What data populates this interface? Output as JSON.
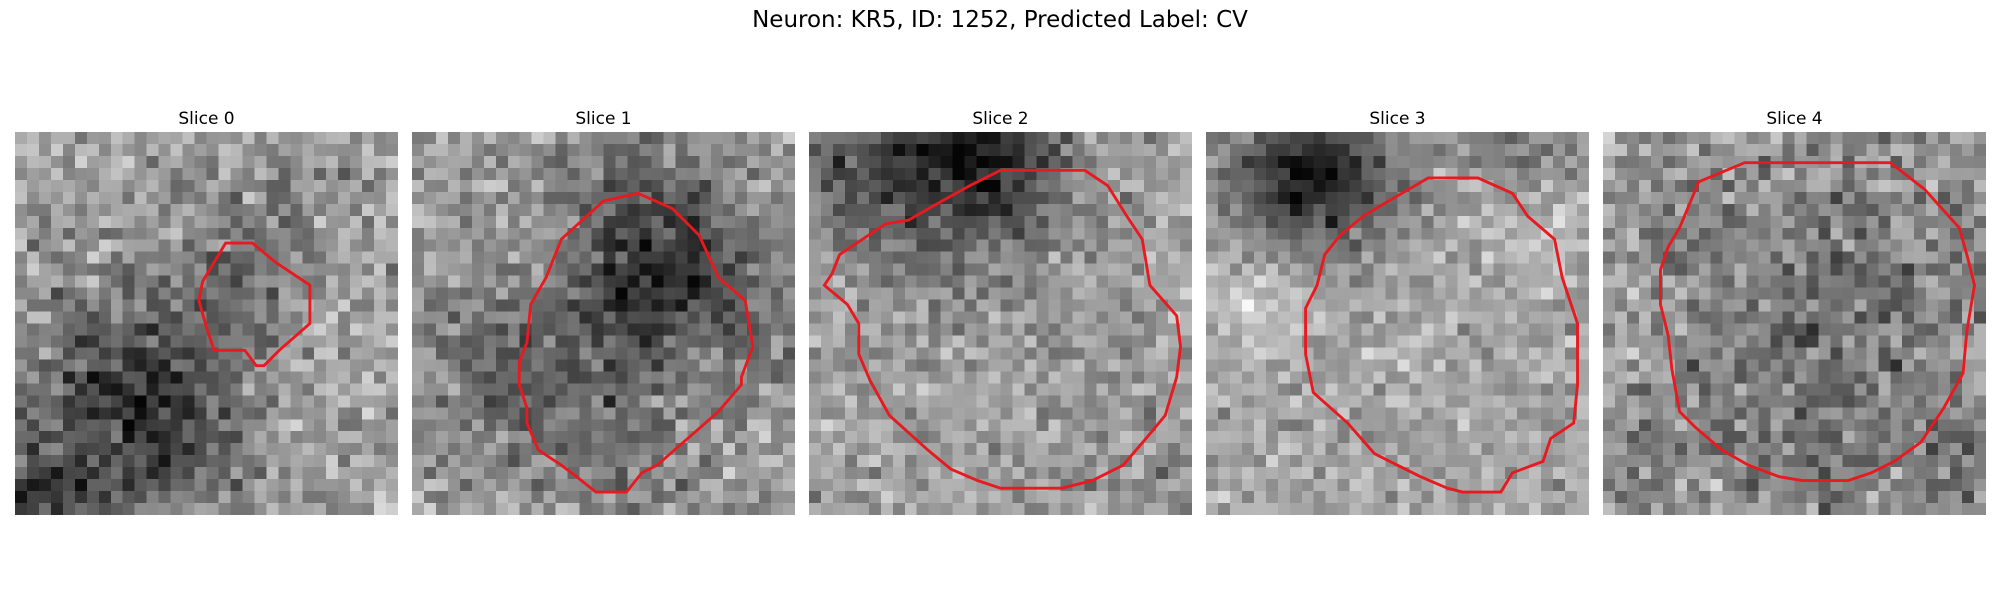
{
  "figure": {
    "title": "Neuron: KR5, ID: 1252, Predicted Label: CV",
    "overlay_color": "#e8191f",
    "panels": [
      {
        "title": "Slice 0",
        "seed": 11,
        "mean": 162,
        "contrast": 38,
        "blobs": [
          [
            0.3,
            0.65,
            0.2,
            -75
          ],
          [
            0.4,
            0.8,
            0.15,
            -55
          ],
          [
            0.05,
            0.97,
            0.12,
            -85
          ],
          [
            0.72,
            0.28,
            0.1,
            -35
          ],
          [
            0.55,
            0.4,
            0.12,
            -30
          ]
        ],
        "contour": [
          [
            0.49,
            0.39
          ],
          [
            0.55,
            0.29
          ],
          [
            0.62,
            0.29
          ],
          [
            0.68,
            0.34
          ],
          [
            0.77,
            0.4
          ],
          [
            0.77,
            0.5
          ],
          [
            0.69,
            0.57
          ],
          [
            0.65,
            0.61
          ],
          [
            0.63,
            0.61
          ],
          [
            0.6,
            0.57
          ],
          [
            0.52,
            0.57
          ],
          [
            0.5,
            0.51
          ],
          [
            0.48,
            0.44
          ]
        ]
      },
      {
        "title": "Slice 1",
        "seed": 23,
        "mean": 158,
        "contrast": 36,
        "blobs": [
          [
            0.58,
            0.38,
            0.16,
            -70
          ],
          [
            0.75,
            0.35,
            0.12,
            -60
          ],
          [
            0.48,
            0.75,
            0.18,
            -45
          ],
          [
            0.2,
            0.6,
            0.15,
            -40
          ],
          [
            0.55,
            0.12,
            0.14,
            -40
          ],
          [
            0.92,
            0.55,
            0.12,
            -25
          ]
        ],
        "contour": [
          [
            0.39,
            0.28
          ],
          [
            0.5,
            0.18
          ],
          [
            0.59,
            0.16
          ],
          [
            0.68,
            0.2
          ],
          [
            0.75,
            0.27
          ],
          [
            0.8,
            0.38
          ],
          [
            0.87,
            0.44
          ],
          [
            0.89,
            0.56
          ],
          [
            0.86,
            0.64
          ],
          [
            0.86,
            0.66
          ],
          [
            0.8,
            0.73
          ],
          [
            0.72,
            0.8
          ],
          [
            0.64,
            0.87
          ],
          [
            0.6,
            0.89
          ],
          [
            0.56,
            0.94
          ],
          [
            0.48,
            0.94
          ],
          [
            0.43,
            0.9
          ],
          [
            0.39,
            0.87
          ],
          [
            0.33,
            0.83
          ],
          [
            0.3,
            0.76
          ],
          [
            0.3,
            0.72
          ],
          [
            0.28,
            0.66
          ],
          [
            0.28,
            0.6
          ],
          [
            0.3,
            0.55
          ],
          [
            0.31,
            0.45
          ],
          [
            0.35,
            0.38
          ]
        ]
      },
      {
        "title": "Slice 2",
        "seed": 37,
        "mean": 160,
        "contrast": 34,
        "blobs": [
          [
            0.35,
            0.12,
            0.18,
            -95
          ],
          [
            0.5,
            0.05,
            0.12,
            -70
          ],
          [
            0.12,
            0.1,
            0.1,
            -45
          ],
          [
            0.88,
            0.95,
            0.12,
            -20
          ]
        ],
        "contour": [
          [
            0.42,
            0.14
          ],
          [
            0.5,
            0.1
          ],
          [
            0.72,
            0.1
          ],
          [
            0.78,
            0.14
          ],
          [
            0.83,
            0.22
          ],
          [
            0.87,
            0.28
          ],
          [
            0.89,
            0.4
          ],
          [
            0.96,
            0.48
          ],
          [
            0.97,
            0.56
          ],
          [
            0.96,
            0.64
          ],
          [
            0.93,
            0.74
          ],
          [
            0.88,
            0.8
          ],
          [
            0.82,
            0.87
          ],
          [
            0.74,
            0.91
          ],
          [
            0.66,
            0.93
          ],
          [
            0.5,
            0.93
          ],
          [
            0.44,
            0.91
          ],
          [
            0.37,
            0.88
          ],
          [
            0.31,
            0.83
          ],
          [
            0.21,
            0.74
          ],
          [
            0.16,
            0.65
          ],
          [
            0.13,
            0.58
          ],
          [
            0.13,
            0.5
          ],
          [
            0.1,
            0.45
          ],
          [
            0.04,
            0.4
          ],
          [
            0.06,
            0.37
          ],
          [
            0.08,
            0.32
          ],
          [
            0.14,
            0.28
          ],
          [
            0.2,
            0.24
          ],
          [
            0.26,
            0.23
          ],
          [
            0.33,
            0.19
          ]
        ]
      },
      {
        "title": "Slice 3",
        "seed": 51,
        "mean": 165,
        "contrast": 30,
        "blobs": [
          [
            0.32,
            0.12,
            0.14,
            -110
          ],
          [
            0.2,
            0.12,
            0.1,
            -50
          ],
          [
            0.85,
            0.06,
            0.1,
            -40
          ],
          [
            0.15,
            0.45,
            0.08,
            45
          ],
          [
            0.9,
            0.25,
            0.08,
            40
          ]
        ],
        "contour": [
          [
            0.46,
            0.19
          ],
          [
            0.58,
            0.12
          ],
          [
            0.71,
            0.12
          ],
          [
            0.8,
            0.16
          ],
          [
            0.84,
            0.22
          ],
          [
            0.91,
            0.28
          ],
          [
            0.93,
            0.38
          ],
          [
            0.97,
            0.5
          ],
          [
            0.97,
            0.66
          ],
          [
            0.96,
            0.76
          ],
          [
            0.9,
            0.8
          ],
          [
            0.88,
            0.86
          ],
          [
            0.8,
            0.89
          ],
          [
            0.77,
            0.94
          ],
          [
            0.67,
            0.94
          ],
          [
            0.63,
            0.93
          ],
          [
            0.56,
            0.9
          ],
          [
            0.5,
            0.87
          ],
          [
            0.44,
            0.84
          ],
          [
            0.37,
            0.76
          ],
          [
            0.28,
            0.68
          ],
          [
            0.26,
            0.58
          ],
          [
            0.26,
            0.46
          ],
          [
            0.29,
            0.4
          ],
          [
            0.31,
            0.32
          ],
          [
            0.35,
            0.27
          ],
          [
            0.41,
            0.22
          ]
        ]
      },
      {
        "title": "Slice 4",
        "seed": 73,
        "mean": 150,
        "contrast": 40,
        "blobs": [
          [
            0.55,
            0.55,
            0.3,
            -35
          ],
          [
            0.05,
            0.5,
            0.1,
            25
          ],
          [
            0.95,
            0.85,
            0.1,
            -20
          ]
        ],
        "contour": [
          [
            0.25,
            0.13
          ],
          [
            0.37,
            0.08
          ],
          [
            0.75,
            0.08
          ],
          [
            0.84,
            0.15
          ],
          [
            0.93,
            0.25
          ],
          [
            0.95,
            0.32
          ],
          [
            0.97,
            0.4
          ],
          [
            0.95,
            0.52
          ],
          [
            0.94,
            0.63
          ],
          [
            0.89,
            0.72
          ],
          [
            0.83,
            0.81
          ],
          [
            0.76,
            0.86
          ],
          [
            0.7,
            0.89
          ],
          [
            0.64,
            0.91
          ],
          [
            0.52,
            0.91
          ],
          [
            0.46,
            0.9
          ],
          [
            0.38,
            0.87
          ],
          [
            0.31,
            0.83
          ],
          [
            0.24,
            0.77
          ],
          [
            0.2,
            0.73
          ],
          [
            0.18,
            0.62
          ],
          [
            0.17,
            0.53
          ],
          [
            0.15,
            0.45
          ],
          [
            0.15,
            0.36
          ],
          [
            0.17,
            0.3
          ],
          [
            0.2,
            0.25
          ]
        ]
      }
    ]
  }
}
